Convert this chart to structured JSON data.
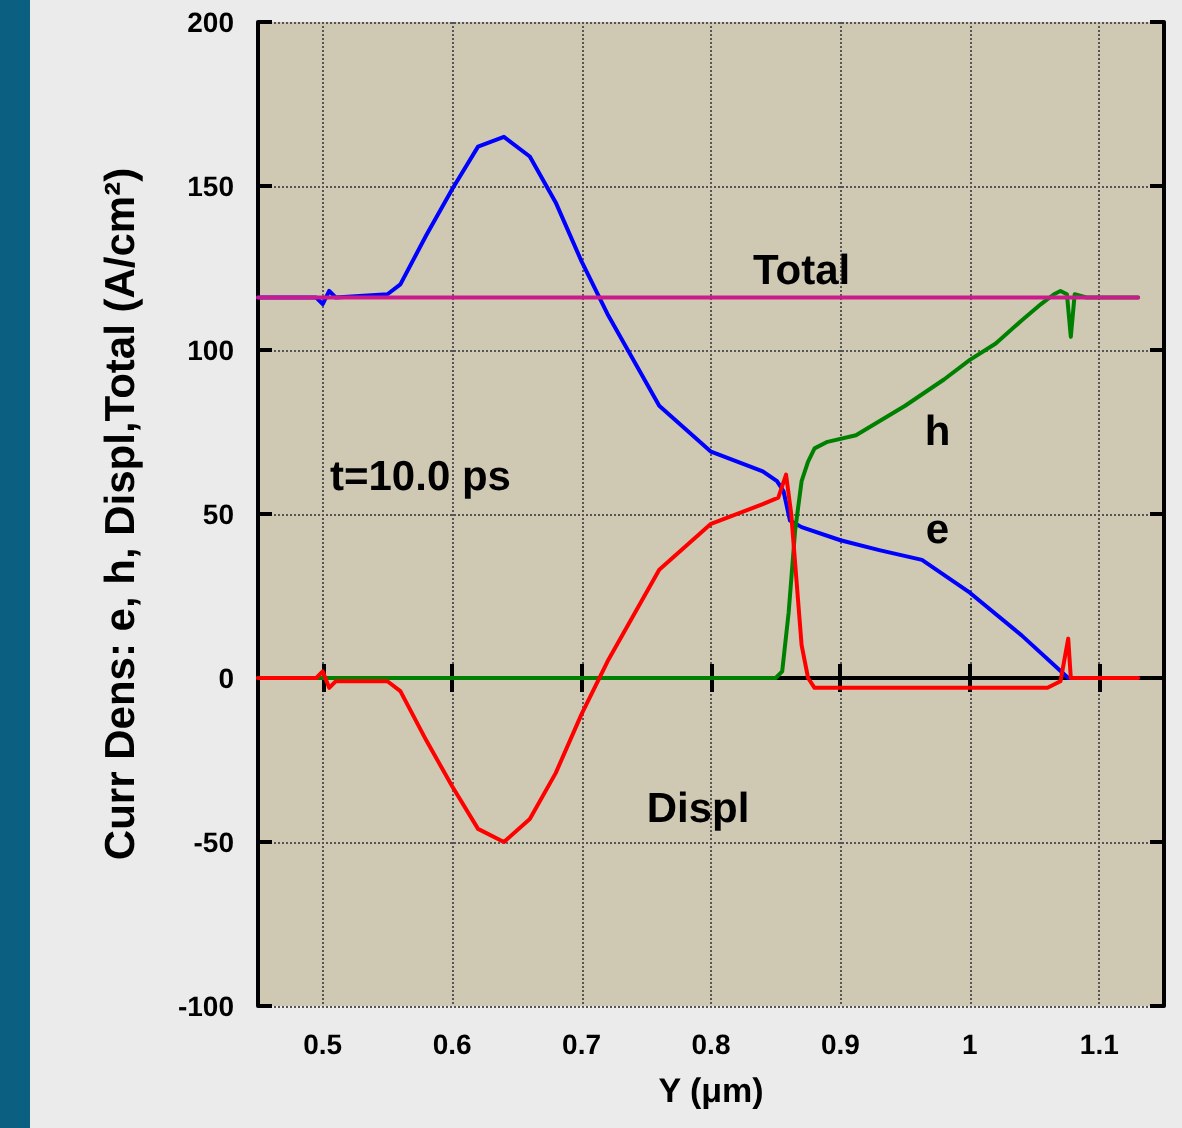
{
  "chart_data": {
    "type": "line",
    "xlabel": "Y (μm)",
    "ylabel": "Curr Dens: e, h, Displ,Total (A/cm²)",
    "xlim": [
      0.45,
      1.15
    ],
    "xticks": [
      0.5,
      0.6,
      0.7,
      0.8,
      0.9,
      1,
      1.1
    ],
    "ylim": [
      -100,
      200
    ],
    "yticks": [
      -100,
      -50,
      0,
      50,
      100,
      150,
      200
    ],
    "grid": true,
    "legend": false,
    "marker": "none",
    "line_style": "solid",
    "annotations": [
      "t=10.0 ps"
    ],
    "series": [
      {
        "name": "e",
        "color": "#0000ff",
        "x": [
          0.45,
          0.495,
          0.5,
          0.505,
          0.51,
          0.55,
          0.56,
          0.58,
          0.6,
          0.62,
          0.64,
          0.66,
          0.68,
          0.7,
          0.72,
          0.76,
          0.8,
          0.84,
          0.851,
          0.856,
          0.861,
          0.87,
          0.9,
          0.93,
          0.963,
          1,
          1.04,
          1.076,
          1.1,
          1.13
        ],
        "values": [
          116,
          116,
          114,
          118,
          116,
          117,
          120,
          135,
          149,
          162,
          165,
          159,
          145,
          127,
          111,
          83,
          69,
          63,
          60,
          57,
          48,
          46,
          42,
          39,
          36,
          26,
          13,
          0,
          0,
          0
        ]
      },
      {
        "name": "h",
        "color": "#008000",
        "x": [
          0.45,
          0.85,
          0.855,
          0.86,
          0.865,
          0.87,
          0.875,
          0.88,
          0.89,
          0.912,
          0.95,
          0.98,
          1,
          1.02,
          1.04,
          1.055,
          1.065,
          1.07,
          1.075,
          1.078,
          1.081,
          1.09,
          1.13
        ],
        "values": [
          0,
          0,
          2,
          20,
          45,
          60,
          66,
          70,
          72,
          74,
          83,
          91,
          97,
          102,
          109,
          114,
          117,
          118,
          117,
          104,
          117,
          116,
          116
        ]
      },
      {
        "name": "Displ",
        "color": "#ff0000",
        "x": [
          0.45,
          0.495,
          0.5,
          0.505,
          0.51,
          0.55,
          0.56,
          0.58,
          0.6,
          0.62,
          0.64,
          0.66,
          0.68,
          0.7,
          0.72,
          0.76,
          0.8,
          0.84,
          0.852,
          0.858,
          0.862,
          0.866,
          0.87,
          0.875,
          0.88,
          0.9,
          1,
          1.06,
          1.07,
          1.076,
          1.078,
          1.13
        ],
        "values": [
          0,
          0,
          2,
          -3,
          -1,
          -1,
          -4,
          -19,
          -33,
          -46,
          -50,
          -43,
          -29,
          -11,
          5,
          33,
          47,
          53,
          55,
          62,
          50,
          30,
          10,
          0,
          -3,
          -3,
          -3,
          -3,
          -1,
          12,
          0,
          0
        ]
      },
      {
        "name": "Total",
        "color": "#cc1a8c",
        "x": [
          0.45,
          1.13
        ],
        "values": [
          116,
          116
        ]
      }
    ]
  }
}
